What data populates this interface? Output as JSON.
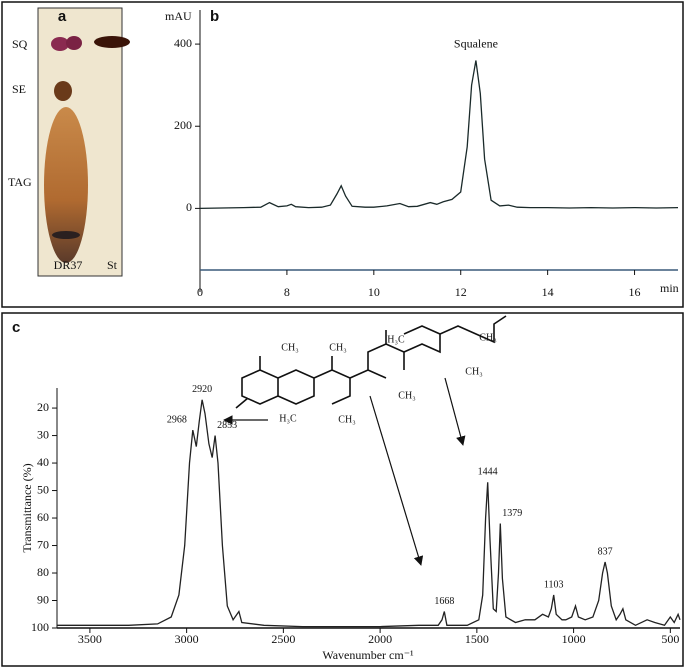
{
  "panel_a": {
    "label": "a",
    "row_labels": [
      "SQ",
      "SE",
      "TAG"
    ],
    "lane_labels": [
      "DR37",
      "St"
    ]
  },
  "chart_data": [
    {
      "type": "line",
      "panel_label": "b",
      "y_axis_label": "mAU",
      "x_axis_label": "min",
      "x_origin_label": "0",
      "annotation": {
        "text": "Squalene",
        "x": 12.35,
        "y": 360
      },
      "x": [
        6.0,
        6.5,
        7.0,
        7.4,
        7.6,
        7.8,
        8.0,
        8.1,
        8.2,
        8.5,
        8.8,
        9.0,
        9.15,
        9.25,
        9.35,
        9.5,
        9.8,
        10.0,
        10.3,
        10.6,
        10.8,
        11.0,
        11.3,
        11.45,
        11.6,
        11.8,
        12.0,
        12.15,
        12.25,
        12.35,
        12.45,
        12.55,
        12.7,
        12.9,
        13.1,
        13.3,
        13.6,
        14.0,
        14.5,
        15.0,
        15.5,
        16.0,
        16.5,
        17.0
      ],
      "series": [
        {
          "color": "#1a2a2a",
          "values": [
            0,
            1,
            2,
            3,
            14,
            4,
            6,
            10,
            4,
            2,
            3,
            8,
            35,
            55,
            30,
            5,
            3,
            3,
            6,
            12,
            4,
            5,
            14,
            10,
            16,
            22,
            40,
            150,
            300,
            360,
            280,
            120,
            20,
            6,
            8,
            3,
            2,
            2,
            1,
            2,
            1,
            2,
            1,
            2
          ]
        }
      ],
      "xlim": [
        6,
        17
      ],
      "xticks": [
        8,
        10,
        12,
        14,
        16
      ],
      "ylim": [
        -150,
        483
      ],
      "yticks": [
        0,
        200,
        400
      ]
    },
    {
      "type": "line",
      "panel_label": "c",
      "y_axis_label": "Transmittance (%)",
      "x_axis_label": "Wavenumber cm⁻¹",
      "x": [
        3670,
        3500,
        3300,
        3150,
        3080,
        3040,
        3010,
        2985,
        2968,
        2950,
        2935,
        2920,
        2905,
        2885,
        2868,
        2853,
        2838,
        2815,
        2790,
        2760,
        2730,
        2715,
        2600,
        2400,
        2000,
        1800,
        1700,
        1680,
        1668,
        1655,
        1550,
        1490,
        1470,
        1455,
        1444,
        1432,
        1415,
        1400,
        1388,
        1379,
        1368,
        1350,
        1300,
        1250,
        1200,
        1160,
        1130,
        1115,
        1103,
        1090,
        1060,
        1040,
        1010,
        990,
        975,
        940,
        900,
        870,
        850,
        837,
        825,
        805,
        780,
        760,
        745,
        730,
        680,
        620,
        580,
        530,
        500,
        480,
        460,
        450
      ],
      "series": [
        {
          "color": "#222222",
          "values": [
            99,
            99,
            99,
            98.5,
            96,
            88,
            70,
            40,
            28,
            34,
            25,
            17,
            22,
            33,
            38,
            30,
            40,
            70,
            92,
            97,
            94,
            98,
            99,
            99.5,
            99.5,
            99,
            99,
            97,
            94,
            99,
            99,
            97,
            88,
            60,
            47,
            68,
            93,
            94,
            80,
            62,
            82,
            96,
            98,
            97,
            97,
            95,
            96,
            93,
            88,
            95,
            97,
            97,
            96,
            92,
            96,
            97,
            96,
            90,
            80,
            76,
            80,
            92,
            97,
            95,
            93,
            97,
            99,
            97,
            98,
            99,
            96,
            98,
            95,
            97
          ]
        }
      ],
      "peak_labels": {
        "x": [
          2968,
          2920,
          2853,
          1668,
          1444,
          1379,
          1103,
          837
        ],
        "y": [
          28,
          17,
          30,
          94,
          47,
          62,
          88,
          76
        ]
      },
      "structure_labels": [
        "H₃C",
        "CH₃",
        "CH₃",
        "CH₃",
        "CH₃",
        "CH₃",
        "H₃C",
        "CH₃"
      ],
      "xlim": [
        3670,
        450
      ],
      "xticks": [
        3500,
        3000,
        2500,
        2000,
        1500,
        1000,
        500
      ],
      "ylim": [
        100,
        12.7
      ],
      "yticks": [
        20,
        30,
        40,
        50,
        60,
        70,
        80,
        90,
        100
      ]
    }
  ]
}
